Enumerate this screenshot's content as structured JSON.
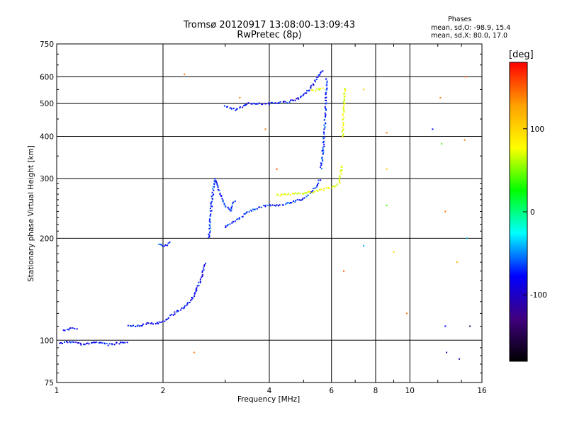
{
  "chart_data": {
    "type": "scatter",
    "title": "Tromsø 20120917 13:08:00-13:09:43",
    "subtitle": "RwPretec (8p)",
    "xlabel": "Frequency [MHz]",
    "ylabel": "Stationary phase Virtual Height [km]",
    "xscale": "log",
    "yscale": "log",
    "xlim": [
      1,
      16
    ],
    "ylim": [
      75,
      750
    ],
    "xticks": [
      1,
      2,
      4,
      6,
      8,
      10,
      16
    ],
    "yticks": [
      75,
      100,
      200,
      300,
      400,
      500,
      600,
      750
    ],
    "grid": true,
    "phases_box": {
      "title": "Phases",
      "o_line": "mean, sd,O: -98.9, 15.4",
      "x_line": "mean, sd,X:  80.0, 17.0"
    },
    "colorbar": {
      "label": "[deg]",
      "range": [
        -180,
        180
      ],
      "ticks": [
        100,
        0,
        -100
      ],
      "colors": [
        "#ff0000",
        "#ffa000",
        "#ffff00",
        "#00ff00",
        "#00ffff",
        "#0000ff",
        "#400080",
        "#000000"
      ]
    },
    "series": [
      {
        "name": "O-mode low trace",
        "phase": -100,
        "segments": [
          {
            "x": [
              1.02,
              1.1,
              1.2,
              1.3,
              1.4,
              1.5,
              1.6
            ],
            "y": [
              98,
              99,
              97,
              99,
              97,
              98,
              98
            ]
          },
          {
            "x": [
              1.05,
              1.1,
              1.15
            ],
            "y": [
              107,
              108,
              108
            ]
          },
          {
            "x": [
              1.6,
              1.7,
              1.8,
              1.9,
              2.0,
              2.05,
              2.1
            ],
            "y": [
              111,
              110,
              112,
              112,
              113,
              115,
              117
            ]
          },
          {
            "x": [
              2.1,
              2.2,
              2.3,
              2.45,
              2.55,
              2.65
            ],
            "y": [
              118,
              122,
              125,
              135,
              150,
              170
            ]
          }
        ]
      },
      {
        "name": "O-mode F1 cusp",
        "phase": -90,
        "segments": [
          {
            "x": [
              1.95,
              2.0,
              2.05,
              2.1
            ],
            "y": [
              192,
              190,
              191,
              195
            ]
          },
          {
            "x": [
              2.7,
              2.75,
              2.8,
              2.85,
              2.9,
              3.0,
              3.1,
              3.2
            ],
            "y": [
              200,
              260,
              300,
              290,
              270,
              250,
              240,
              260
            ]
          },
          {
            "x": [
              3.0,
              3.2,
              3.5,
              3.8,
              4.0,
              4.3,
              4.6,
              5.0,
              5.3,
              5.6
            ],
            "y": [
              215,
              225,
              240,
              248,
              250,
              250,
              255,
              262,
              275,
              300
            ]
          },
          {
            "x": [
              5.6,
              5.7,
              5.75,
              5.8,
              5.82
            ],
            "y": [
              320,
              380,
              450,
              530,
              600
            ]
          }
        ]
      },
      {
        "name": "O-mode F2 trace",
        "phase": -100,
        "segments": [
          {
            "x": [
              3.0,
              3.2,
              3.5,
              3.8,
              4.1,
              4.5,
              4.9,
              5.2,
              5.5,
              5.7
            ],
            "y": [
              490,
              480,
              500,
              500,
              500,
              505,
              520,
              550,
              600,
              630
            ]
          }
        ]
      },
      {
        "name": "X-mode trace",
        "phase": 80,
        "segments": [
          {
            "x": [
              4.2,
              4.6,
              5.0,
              5.4,
              5.8,
              6.0,
              6.3,
              6.45
            ],
            "y": [
              268,
              270,
              272,
              275,
              280,
              282,
              290,
              330
            ]
          },
          {
            "x": [
              6.45,
              6.5,
              6.55
            ],
            "y": [
              400,
              480,
              560
            ]
          },
          {
            "x": [
              5.3,
              5.5,
              5.7
            ],
            "y": [
              545,
              550,
              555
            ]
          }
        ]
      }
    ],
    "scatter_points": [
      {
        "x": 2.3,
        "y": 610,
        "phase": 150
      },
      {
        "x": 2.45,
        "y": 92,
        "phase": 150
      },
      {
        "x": 3.3,
        "y": 520,
        "phase": 150
      },
      {
        "x": 3.9,
        "y": 420,
        "phase": 150
      },
      {
        "x": 4.2,
        "y": 320,
        "phase": 160
      },
      {
        "x": 6.5,
        "y": 160,
        "phase": 160
      },
      {
        "x": 7.4,
        "y": 550,
        "phase": 120
      },
      {
        "x": 7.4,
        "y": 190,
        "phase": -60
      },
      {
        "x": 8.6,
        "y": 410,
        "phase": 150
      },
      {
        "x": 8.6,
        "y": 320,
        "phase": 120
      },
      {
        "x": 8.6,
        "y": 250,
        "phase": 20
      },
      {
        "x": 9.0,
        "y": 182,
        "phase": 110
      },
      {
        "x": 9.8,
        "y": 120,
        "phase": 150
      },
      {
        "x": 11.6,
        "y": 420,
        "phase": -100
      },
      {
        "x": 12.2,
        "y": 520,
        "phase": 150
      },
      {
        "x": 12.3,
        "y": 380,
        "phase": 20
      },
      {
        "x": 12.6,
        "y": 240,
        "phase": 150
      },
      {
        "x": 12.6,
        "y": 110,
        "phase": -100
      },
      {
        "x": 12.7,
        "y": 92,
        "phase": -120
      },
      {
        "x": 13.6,
        "y": 170,
        "phase": 130
      },
      {
        "x": 13.8,
        "y": 88,
        "phase": -140
      },
      {
        "x": 14.3,
        "y": 390,
        "phase": 150
      },
      {
        "x": 14.4,
        "y": 600,
        "phase": 160
      },
      {
        "x": 14.5,
        "y": 200,
        "phase": -60
      },
      {
        "x": 14.8,
        "y": 110,
        "phase": -160
      }
    ]
  }
}
